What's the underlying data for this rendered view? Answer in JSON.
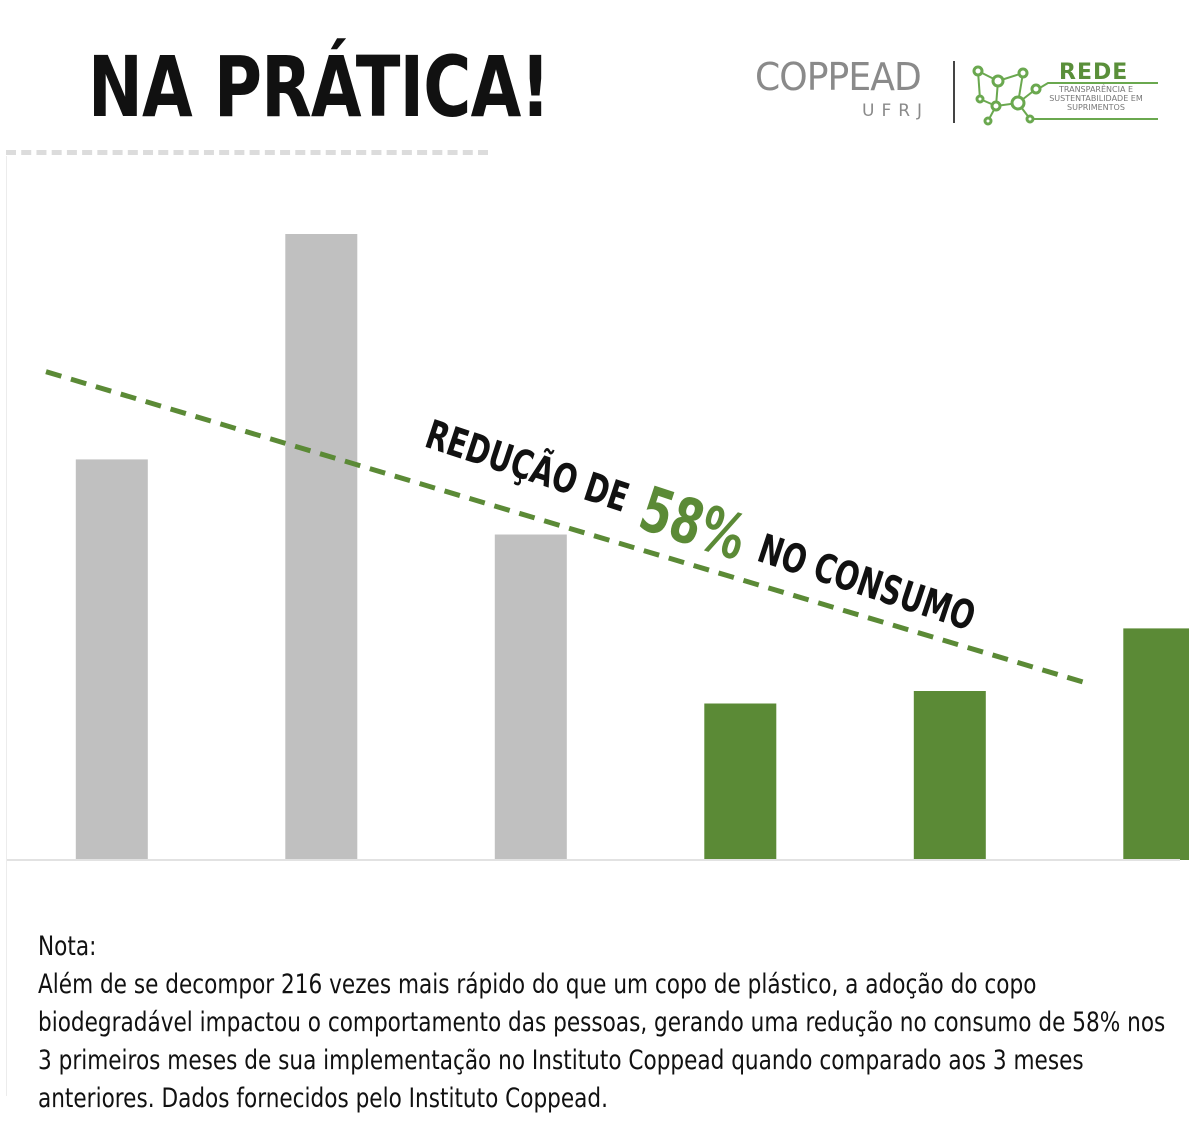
{
  "header": {
    "title": "NA PRÁTICA!"
  },
  "logos": {
    "coppead": "COPPEAD",
    "ufrj": "UFRJ",
    "rede": "REDE",
    "rede_subtitle": "TRANSPARÊNCIA E SUSTENTABILIDADE EM SUPRIMENTOS"
  },
  "chart_data": {
    "type": "bar",
    "categories": [
      "",
      "",
      "",
      "",
      "",
      ""
    ],
    "values": [
      64,
      100,
      52,
      25,
      27,
      37
    ],
    "colors": [
      "#c0c0c0",
      "#c0c0c0",
      "#c0c0c0",
      "#5b8a36",
      "#5b8a36",
      "#5b8a36"
    ],
    "ylim": [
      0,
      100
    ],
    "grid": false,
    "trend_line": {
      "style": "dashed",
      "color": "#5b8a36",
      "start": 78,
      "end": 28
    },
    "annotation": {
      "prefix": "REDUÇÃO DE",
      "highlight": "58%",
      "suffix": "NO CONSUMO"
    }
  },
  "note": {
    "label": "Nota:",
    "text": "Além de se decompor 216 vezes mais rápido do que um copo de plástico, a adoção do copo biodegradável impactou o comportamento das pessoas, gerando uma redução no consumo de 58% nos 3 primeiros meses de sua implementação no Instituto Coppead quando comparado aos 3 meses anteriores. Dados fornecidos pelo Instituto Coppead."
  }
}
